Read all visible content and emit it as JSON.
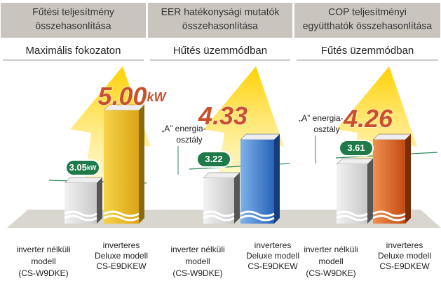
{
  "panels": [
    {
      "header": [
        "Fűtési teljesítmény",
        "összehasonlítása"
      ],
      "subheader": "Maximális fokozaton",
      "badge": {
        "value": "3.05",
        "unit": "kW"
      },
      "big": {
        "value": "5.00",
        "unit": "kW"
      },
      "left_label": [
        "inverter nélküli",
        "modell",
        "(CS-W9DKE)"
      ],
      "right_label": [
        "inverteres",
        "Deluxe modell",
        "CS-E9DKEW"
      ]
    },
    {
      "header": [
        "EER hatékonysági mutatók",
        "összehasonlítása"
      ],
      "subheader": "Hűtés üzemmódban",
      "energy": [
        "„A” energia-",
        "osztály"
      ],
      "badge": {
        "value": "3.22"
      },
      "big": {
        "value": "4.33"
      },
      "left_label": [
        "inverter nélküli",
        "modell",
        "(CS-W9DKE)"
      ],
      "right_label": [
        "inverteres",
        "Deluxe modell",
        "CS-E9DKEW"
      ]
    },
    {
      "header": [
        "COP teljesítményi",
        "együtthatók összehasonlítása"
      ],
      "subheader": "Fűtés üzemmódban",
      "energy": [
        "„A” energia-",
        "osztály"
      ],
      "badge": {
        "value": "3.61"
      },
      "big": {
        "value": "4.26"
      },
      "left_label": [
        "inverter nélküli",
        "modell",
        "(CS-W9DKE)"
      ],
      "right_label": [
        "inverteres",
        "Deluxe modell",
        "CS-E9DKEW"
      ]
    }
  ]
}
